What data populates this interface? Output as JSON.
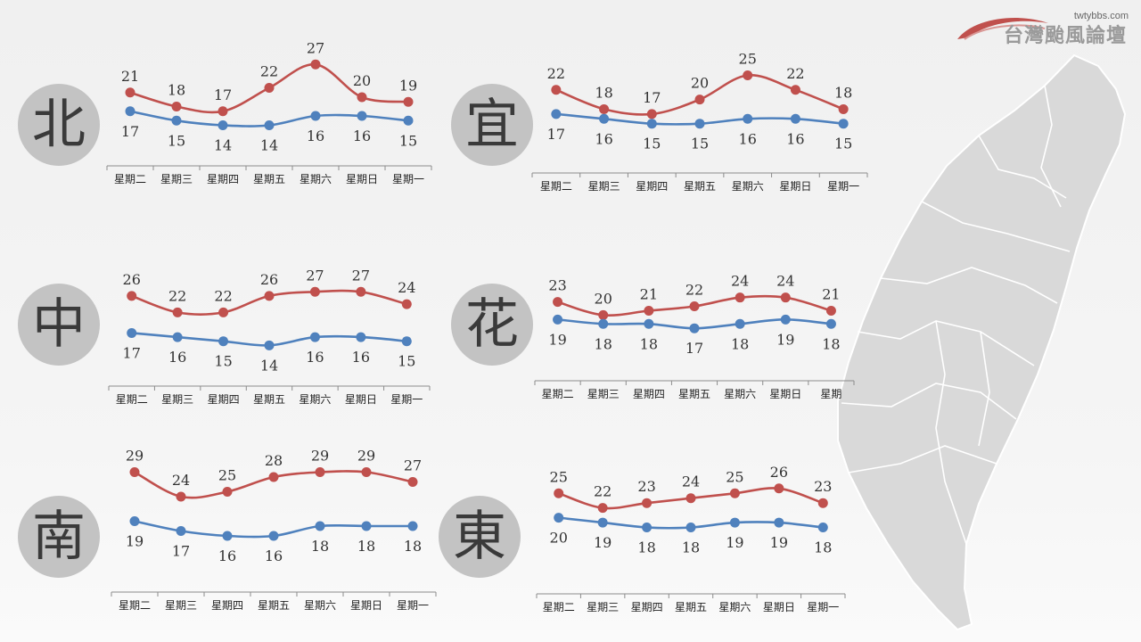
{
  "logo": {
    "domain": "twtybbs.com",
    "name": "台灣颱風論壇"
  },
  "colors": {
    "high": "#c0504d",
    "low": "#4f81bd",
    "axis": "#8c8c8c",
    "circle": "#c3c3c3",
    "map": "#d9d9d9"
  },
  "regions": [
    {
      "key": "north",
      "label": "北"
    },
    {
      "key": "yilan",
      "label": "宜"
    },
    {
      "key": "central",
      "label": "中"
    },
    {
      "key": "hualien",
      "label": "花"
    },
    {
      "key": "south",
      "label": "南"
    },
    {
      "key": "east",
      "label": "東"
    }
  ],
  "chart_data": [
    {
      "type": "line",
      "region": "北",
      "categories": [
        "星期二",
        "星期三",
        "星期四",
        "星期五",
        "星期六",
        "星期日",
        "星期一"
      ],
      "series": [
        {
          "values": [
            21,
            18,
            17,
            22,
            27,
            20,
            19
          ]
        },
        {
          "values": [
            17,
            15,
            14,
            14,
            16,
            16,
            15
          ]
        }
      ]
    },
    {
      "type": "line",
      "region": "宜",
      "categories": [
        "星期二",
        "星期三",
        "星期四",
        "星期五",
        "星期六",
        "星期日",
        "星期一"
      ],
      "series": [
        {
          "values": [
            22,
            18,
            17,
            20,
            25,
            22,
            18
          ]
        },
        {
          "values": [
            17,
            16,
            15,
            15,
            16,
            16,
            15
          ]
        }
      ]
    },
    {
      "type": "line",
      "region": "中",
      "categories": [
        "星期二",
        "星期三",
        "星期四",
        "星期五",
        "星期六",
        "星期日",
        "星期一"
      ],
      "series": [
        {
          "values": [
            26,
            22,
            22,
            26,
            27,
            27,
            24
          ]
        },
        {
          "values": [
            17,
            16,
            15,
            14,
            16,
            16,
            15
          ]
        }
      ]
    },
    {
      "type": "line",
      "region": "花",
      "categories": [
        "星期二",
        "星期三",
        "星期四",
        "星期五",
        "星期六",
        "星期日",
        "星期"
      ],
      "series": [
        {
          "values": [
            23,
            20,
            21,
            22,
            24,
            24,
            21
          ]
        },
        {
          "values": [
            19,
            18,
            18,
            17,
            18,
            19,
            18
          ]
        }
      ]
    },
    {
      "type": "line",
      "region": "南",
      "categories": [
        "星期二",
        "星期三",
        "星期四",
        "星期五",
        "星期六",
        "星期日",
        "星期一"
      ],
      "series": [
        {
          "values": [
            29,
            24,
            25,
            28,
            29,
            29,
            27
          ]
        },
        {
          "values": [
            19,
            17,
            16,
            16,
            18,
            18,
            18
          ]
        }
      ]
    },
    {
      "type": "line",
      "region": "東",
      "categories": [
        "星期二",
        "星期三",
        "星期四",
        "星期五",
        "星期六",
        "星期日",
        "星期一"
      ],
      "series": [
        {
          "values": [
            25,
            22,
            23,
            24,
            25,
            26,
            23
          ]
        },
        {
          "values": [
            20,
            19,
            18,
            18,
            19,
            19,
            18
          ]
        }
      ]
    }
  ]
}
